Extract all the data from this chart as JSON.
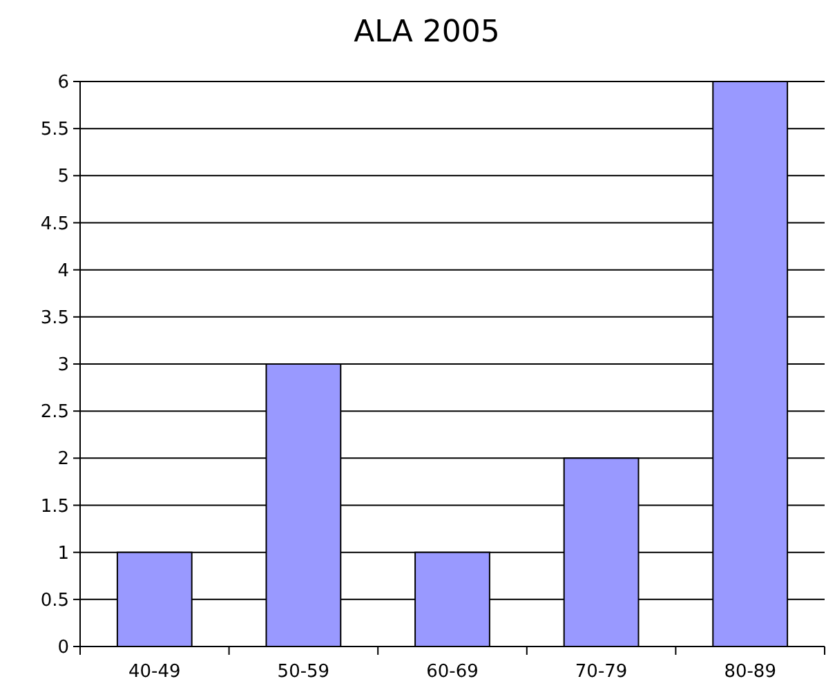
{
  "chart_data": {
    "type": "bar",
    "title": "ALA 2005",
    "categories": [
      "40-49",
      "50-59",
      "60-69",
      "70-79",
      "80-89"
    ],
    "values": [
      1,
      3,
      1,
      2,
      6
    ],
    "color": "#9999ff",
    "ylim": [
      0,
      6
    ],
    "yticks": [
      0,
      0.5,
      1,
      1.5,
      2,
      2.5,
      3,
      3.5,
      4,
      4.5,
      5,
      5.5,
      6
    ],
    "grid": "y"
  }
}
